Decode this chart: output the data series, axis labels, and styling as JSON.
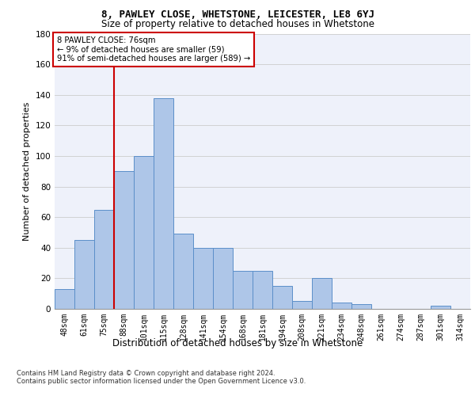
{
  "title1": "8, PAWLEY CLOSE, WHETSTONE, LEICESTER, LE8 6YJ",
  "title2": "Size of property relative to detached houses in Whetstone",
  "xlabel": "Distribution of detached houses by size in Whetstone",
  "ylabel": "Number of detached properties",
  "categories": [
    "48sqm",
    "61sqm",
    "75sqm",
    "88sqm",
    "101sqm",
    "115sqm",
    "128sqm",
    "141sqm",
    "154sqm",
    "168sqm",
    "181sqm",
    "194sqm",
    "208sqm",
    "221sqm",
    "234sqm",
    "248sqm",
    "261sqm",
    "274sqm",
    "287sqm",
    "301sqm",
    "314sqm"
  ],
  "values": [
    13,
    45,
    65,
    90,
    100,
    138,
    49,
    40,
    40,
    25,
    25,
    15,
    5,
    20,
    4,
    3,
    0,
    0,
    0,
    2,
    0
  ],
  "bar_color": "#aec6e8",
  "bar_edge_color": "#5b8fc9",
  "annotation_text_line1": "8 PAWLEY CLOSE: 76sqm",
  "annotation_text_line2": "← 9% of detached houses are smaller (59)",
  "annotation_text_line3": "91% of semi-detached houses are larger (589) →",
  "vline_color": "#cc0000",
  "ylim": [
    0,
    180
  ],
  "yticks": [
    0,
    20,
    40,
    60,
    80,
    100,
    120,
    140,
    160,
    180
  ],
  "footer1": "Contains HM Land Registry data © Crown copyright and database right 2024.",
  "footer2": "Contains public sector information licensed under the Open Government Licence v3.0.",
  "bg_color": "#eef1fa",
  "grid_color": "#cccccc",
  "vline_pos": 2.5
}
